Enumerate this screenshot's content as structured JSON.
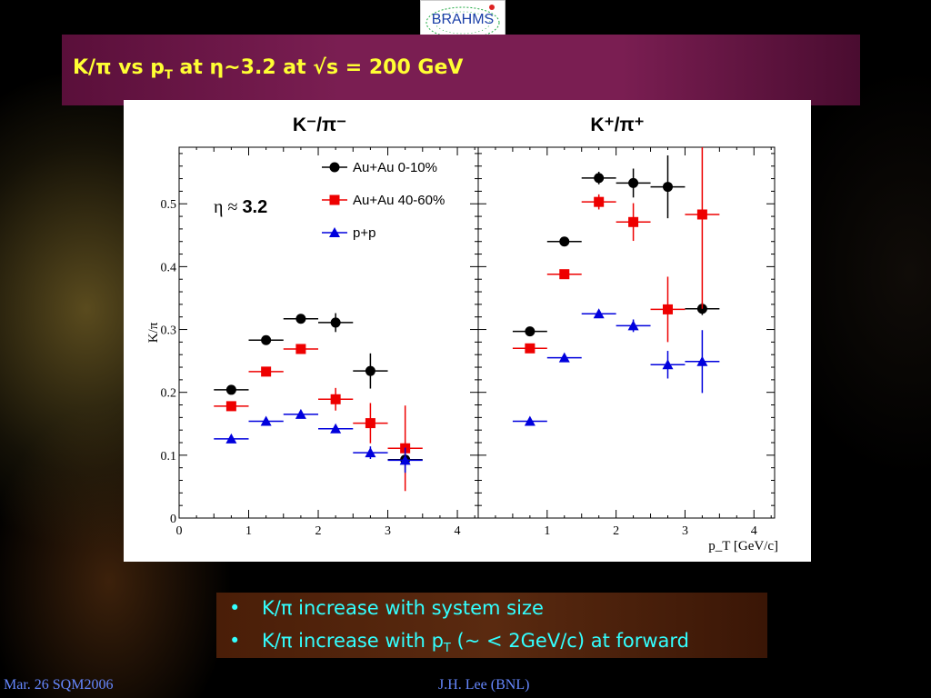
{
  "logo": {
    "text": "BRAHMS"
  },
  "title": {
    "pre": "K/π vs p",
    "sub": "T",
    "post": " at η~3.2 at √s = 200 GeV"
  },
  "bullets": [
    {
      "text": "K/π increase with system size"
    },
    {
      "pre": "K/π increase with p",
      "sub": "T",
      "post": " (~ < 2GeV/c) at forward"
    }
  ],
  "footer": {
    "left": "Mar. 26 SQM2006",
    "center": "J.H. Lee (BNL)"
  },
  "colors": {
    "series_central": "#000000",
    "series_peripheral": "#ee0000",
    "series_pp": "#0000dd",
    "title": "#ffff33",
    "bullets": "#33ffff"
  },
  "chart_data": [
    {
      "type": "scatter",
      "title": "K⁻/π⁻",
      "xlabel": "",
      "ylabel": "K/π",
      "xlim": [
        0,
        4.3
      ],
      "ylim": [
        0,
        0.59
      ],
      "xticks": [
        0,
        1,
        2,
        3,
        4
      ],
      "yticks": [
        0,
        0.1,
        0.2,
        0.3,
        0.4,
        0.5
      ],
      "annotation": {
        "eta": "η ≈ ",
        "value": "3.2"
      },
      "legend": {
        "placement": "top-right"
      },
      "series": [
        {
          "name": "Au+Au 0-10%",
          "marker": "circle",
          "color": "#000000",
          "x": [
            0.75,
            1.25,
            1.75,
            2.25,
            2.75,
            3.25
          ],
          "y": [
            0.204,
            0.283,
            0.317,
            0.311,
            0.234,
            0.093
          ],
          "xerr": [
            0.25,
            0.25,
            0.25,
            0.25,
            0.25,
            0.25
          ],
          "yerr": [
            0.004,
            0.004,
            0.006,
            0.015,
            0.028,
            0.02
          ]
        },
        {
          "name": "Au+Au 40-60%",
          "marker": "square",
          "color": "#ee0000",
          "x": [
            0.75,
            1.25,
            1.75,
            2.25,
            2.75,
            3.25
          ],
          "y": [
            0.178,
            0.233,
            0.269,
            0.189,
            0.151,
            0.111
          ],
          "xerr": [
            0.25,
            0.25,
            0.25,
            0.25,
            0.25,
            0.25
          ],
          "yerr": [
            0.004,
            0.004,
            0.006,
            0.018,
            0.032,
            0.068
          ]
        },
        {
          "name": "p+p",
          "marker": "triangle",
          "color": "#0000dd",
          "x": [
            0.75,
            1.25,
            1.75,
            2.25,
            2.75,
            3.25
          ],
          "y": [
            0.126,
            0.154,
            0.165,
            0.142,
            0.104,
            0.092
          ],
          "xerr": [
            0.25,
            0.25,
            0.25,
            0.25,
            0.25,
            0.25
          ],
          "yerr": [
            0.003,
            0.003,
            0.004,
            0.006,
            0.01,
            0.02
          ]
        }
      ]
    },
    {
      "type": "scatter",
      "title": "K⁺/π⁺",
      "xlabel": "p_T [GeV/c]",
      "ylabel": "",
      "xlim": [
        0,
        4.3
      ],
      "ylim": [
        0,
        0.59
      ],
      "xticks": [
        1,
        2,
        3,
        4
      ],
      "yticks": [],
      "series": [
        {
          "name": "Au+Au 0-10%",
          "marker": "circle",
          "color": "#000000",
          "x": [
            0.75,
            1.25,
            1.75,
            2.25,
            2.75,
            3.25
          ],
          "y": [
            0.297,
            0.44,
            0.541,
            0.533,
            0.527,
            0.333
          ],
          "xerr": [
            0.25,
            0.25,
            0.25,
            0.25,
            0.25,
            0.25
          ],
          "yerr": [
            0.004,
            0.005,
            0.01,
            0.023,
            0.05,
            0.01
          ]
        },
        {
          "name": "Au+Au 40-60%",
          "marker": "square",
          "color": "#ee0000",
          "x": [
            0.75,
            1.25,
            1.75,
            2.25,
            2.75,
            3.25
          ],
          "y": [
            0.27,
            0.388,
            0.503,
            0.471,
            0.332,
            0.483
          ],
          "xerr": [
            0.25,
            0.25,
            0.25,
            0.25,
            0.25,
            0.25
          ],
          "yerr": [
            0.005,
            0.005,
            0.012,
            0.03,
            0.052,
            0.15
          ]
        },
        {
          "name": "p+p",
          "marker": "triangle",
          "color": "#0000dd",
          "x": [
            0.75,
            1.25,
            1.75,
            2.25,
            2.75,
            3.25
          ],
          "y": [
            0.154,
            0.255,
            0.325,
            0.306,
            0.244,
            0.249
          ],
          "xerr": [
            0.25,
            0.25,
            0.25,
            0.25,
            0.25,
            0.25
          ],
          "yerr": [
            0.003,
            0.003,
            0.005,
            0.01,
            0.022,
            0.05
          ]
        }
      ]
    }
  ]
}
